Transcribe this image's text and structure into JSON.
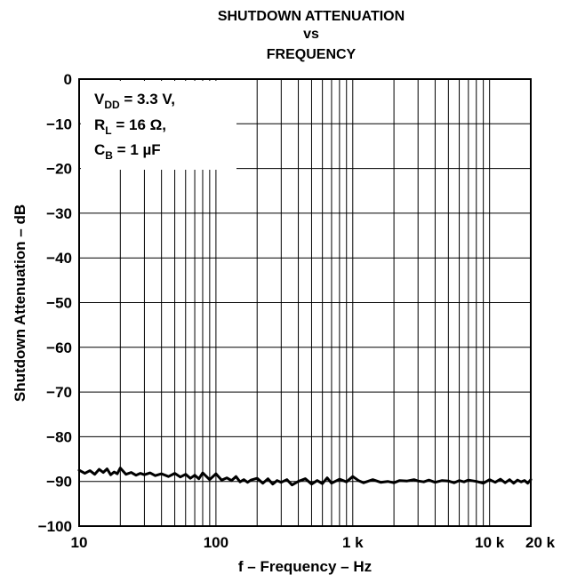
{
  "chart_data": {
    "type": "line",
    "title_lines": [
      "SHUTDOWN ATTENUATION",
      "vs",
      "FREQUENCY"
    ],
    "xlabel": "f – Frequency – Hz",
    "ylabel": "Shutdown Attenuation – dB",
    "x_scale": "log",
    "xlim": [
      10,
      20000
    ],
    "ylim": [
      -100,
      0
    ],
    "x_ticks": [
      {
        "value": 10,
        "label": "10"
      },
      {
        "value": 100,
        "label": "100"
      },
      {
        "value": 1000,
        "label": "1 k"
      },
      {
        "value": 10000,
        "label": "10 k"
      },
      {
        "value": 20000,
        "label": "20 k"
      }
    ],
    "y_ticks": [
      {
        "value": 0,
        "label": "0"
      },
      {
        "value": -10,
        "label": "−10"
      },
      {
        "value": -20,
        "label": "−20"
      },
      {
        "value": -30,
        "label": "−30"
      },
      {
        "value": -40,
        "label": "−40"
      },
      {
        "value": -50,
        "label": "−50"
      },
      {
        "value": -60,
        "label": "−60"
      },
      {
        "value": -70,
        "label": "−70"
      },
      {
        "value": -80,
        "label": "−80"
      },
      {
        "value": -90,
        "label": "−90"
      },
      {
        "value": -100,
        "label": "−100"
      }
    ],
    "grid": true,
    "legend_position": "top-left",
    "annotation": {
      "lines": [
        {
          "main": "V",
          "sub": "DD",
          "rest": " = 3.3 V,"
        },
        {
          "main": "R",
          "sub": "L",
          "rest": " = 16 Ω,"
        },
        {
          "main": "C",
          "sub": "B",
          "rest": " = 1 µF"
        }
      ]
    },
    "series": [
      {
        "x": [
          10,
          11,
          12,
          13,
          14,
          15,
          16,
          17,
          18,
          19,
          20,
          22,
          24,
          26,
          28,
          30,
          33,
          36,
          40,
          45,
          50,
          55,
          60,
          65,
          70,
          75,
          80,
          90,
          100,
          110,
          120,
          130,
          140,
          150,
          160,
          170,
          180,
          200,
          220,
          240,
          260,
          280,
          300,
          330,
          360,
          400,
          450,
          500,
          550,
          600,
          650,
          700,
          800,
          900,
          1000,
          1100,
          1200,
          1400,
          1600,
          1800,
          2000,
          2200,
          2500,
          2800,
          3000,
          3300,
          3600,
          4000,
          4500,
          5000,
          5500,
          6000,
          6500,
          7000,
          8000,
          9000,
          10000,
          11000,
          12000,
          13000,
          14000,
          15000,
          16000,
          17000,
          18000,
          19000,
          20000
        ],
        "y": [
          -87.5,
          -88.2,
          -87.6,
          -88.4,
          -87.3,
          -88.0,
          -87.2,
          -88.5,
          -87.9,
          -88.3,
          -87.0,
          -88.4,
          -88.0,
          -88.6,
          -88.2,
          -88.5,
          -88.1,
          -88.7,
          -88.3,
          -88.9,
          -88.2,
          -89.0,
          -88.4,
          -89.3,
          -88.6,
          -89.4,
          -88.1,
          -89.6,
          -88.3,
          -89.7,
          -89.2,
          -89.8,
          -88.9,
          -90.1,
          -89.6,
          -90.2,
          -89.7,
          -89.3,
          -90.4,
          -89.4,
          -90.6,
          -89.8,
          -90.2,
          -89.6,
          -90.8,
          -90.0,
          -89.4,
          -90.6,
          -89.8,
          -90.5,
          -89.2,
          -90.4,
          -89.5,
          -90.1,
          -88.9,
          -89.8,
          -90.3,
          -89.6,
          -90.2,
          -90.0,
          -90.3,
          -89.8,
          -89.9,
          -89.6,
          -89.9,
          -90.1,
          -89.7,
          -90.2,
          -89.8,
          -89.9,
          -90.3,
          -89.8,
          -90.1,
          -89.7,
          -90.0,
          -90.4,
          -89.6,
          -90.2,
          -89.5,
          -90.3,
          -89.6,
          -90.4,
          -89.7,
          -90.1,
          -89.8,
          -90.4,
          -89.6
        ]
      }
    ]
  }
}
